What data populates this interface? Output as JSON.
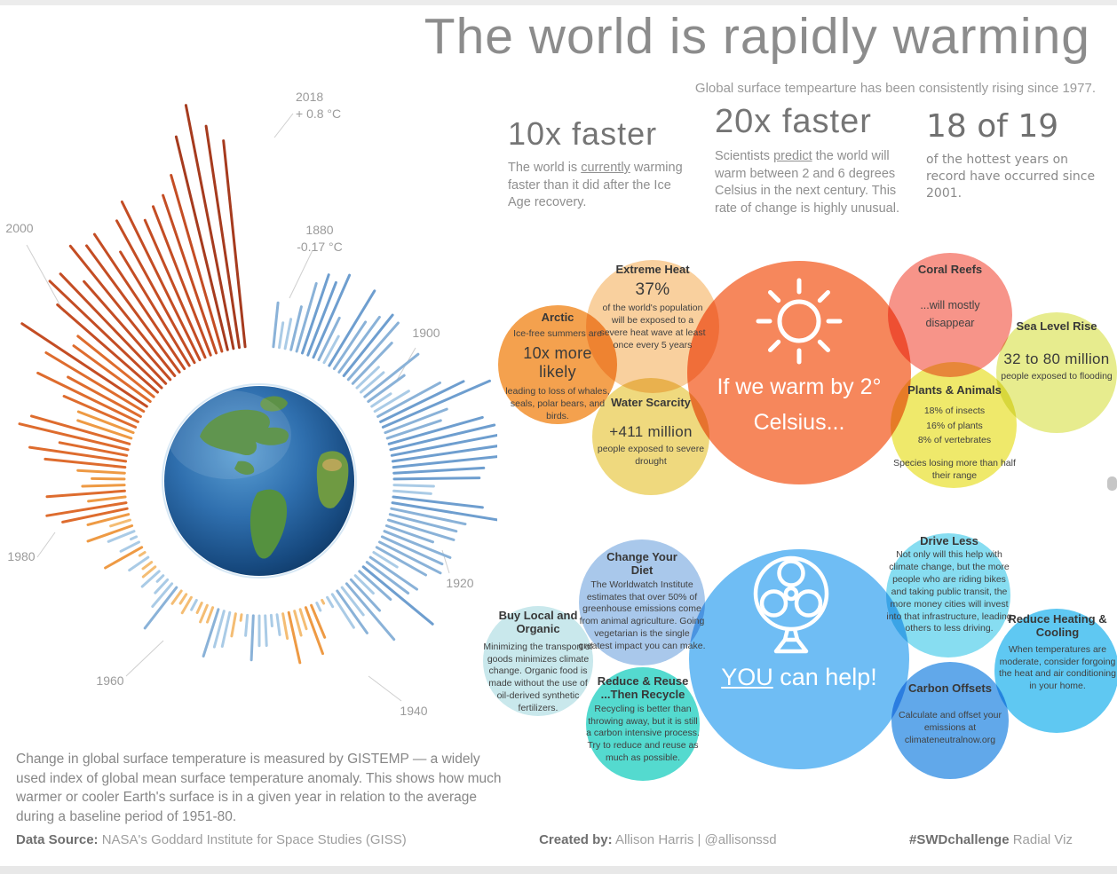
{
  "page": {
    "title": "The world is rapidly warming",
    "subtitle": "Global surface tempearture has been consistently rising since 1977."
  },
  "stats": [
    {
      "headline": "10x faster",
      "body_pre": "The world is ",
      "body_u": "currently",
      "body_post": " warming faster than it did after the Ice Age recovery."
    },
    {
      "headline": "20x faster",
      "body_pre": "Scientists ",
      "body_u": "predict",
      "body_post": " the world will warm between 2 and 6 degrees Celsius in the next century. This rate of change is highly unusual."
    },
    {
      "headline": "18 of 19",
      "body": "of the hottest years on record have occurred since 2001."
    }
  ],
  "warming_cluster": {
    "center": {
      "line1": "If we warm by 2°",
      "line2": "Celsius...",
      "icon": "sun-icon",
      "color": "#f6875c"
    },
    "bubbles": [
      {
        "id": "extreme-heat",
        "title": "Extreme Heat",
        "stat": "37%",
        "body": "of the world's population will be exposed to a severe heat wave at least once every 5 years",
        "color": "#f9d09e"
      },
      {
        "id": "arctic",
        "title": "Arctic",
        "pre": "Ice-free summers are",
        "stat": "10x more likely",
        "body": "leading to loss of whales, seals, polar bears, and birds.",
        "color": "#f4a14e"
      },
      {
        "id": "water-scarcity",
        "title": "Water Scarcity",
        "stat": "+411 million",
        "body": "people exposed to severe drought",
        "color": "#efd97e"
      },
      {
        "id": "coral-reefs",
        "title": "Coral Reefs",
        "body": "...will mostly disappear",
        "color": "#f79489"
      },
      {
        "id": "plants-animals",
        "title": "Plants & Animals",
        "lines": "18% of insects\n16% of plants\n8% of vertebrates",
        "body": "Species losing more than half their range",
        "color": "#efe96b"
      },
      {
        "id": "sea-level-rise",
        "title": "Sea Level Rise",
        "stat": "32 to 80 million",
        "body": "people exposed to flooding",
        "color": "#e7ec8e"
      }
    ]
  },
  "help_cluster": {
    "center": {
      "u": "YOU",
      "rest": " can help!",
      "icon": "fan-icon",
      "color": "#6fbdf4"
    },
    "bubbles": [
      {
        "id": "change-diet",
        "title": "Change Your\nDiet",
        "body": "The Worldwatch Institute estimates that over 50% of greenhouse emissions come from animal agriculture. Going vegetarian is the single greatest impact you can make.",
        "color": "#a9c8eb"
      },
      {
        "id": "buy-local",
        "title": "Buy Local and\nOrganic",
        "body": "Minimizing the transport of goods minimizes climate change. Organic food is made without the use of oil-derived synthetic fertilizers.",
        "color": "#c9e8ec"
      },
      {
        "id": "reduce-reuse",
        "title": "Reduce & Reuse\n...Then Recycle",
        "body": "Recycling is better than throwing away, but it is still a carbon intensive process. Try to reduce and reuse as much as possible.",
        "color": "#54dacf"
      },
      {
        "id": "drive-less",
        "title": "Drive Less",
        "body": "Not only will this help with climate change, but the more people who are riding bikes and taking public transit, the more money cities will invest into that infrastructure, leading others to less driving.",
        "color": "#87ddf1"
      },
      {
        "id": "carbon-offsets",
        "title": "Carbon Offsets",
        "body": "Calculate and offset your emissions at climateneutralnow.org",
        "color": "#61a8ea"
      },
      {
        "id": "reduce-heating",
        "title": "Reduce Heating &\nCooling",
        "body": "When temperatures are moderate, consider forgoing the heat and air conditioning in your home.",
        "color": "#5fc8f2"
      }
    ]
  },
  "chart_data": {
    "type": "radial-bar",
    "title": "Change in global surface temperature (GISTEMP anomaly vs 1951-80 baseline)",
    "unit": "°C",
    "year_start": 1880,
    "year_end": 2018,
    "values": [
      -0.17,
      -0.09,
      -0.11,
      -0.17,
      -0.28,
      -0.33,
      -0.31,
      -0.36,
      -0.18,
      -0.11,
      -0.35,
      -0.22,
      -0.27,
      -0.31,
      -0.3,
      -0.22,
      -0.11,
      -0.11,
      -0.27,
      -0.17,
      -0.08,
      -0.15,
      -0.28,
      -0.37,
      -0.47,
      -0.26,
      -0.22,
      -0.39,
      -0.43,
      -0.48,
      -0.43,
      -0.44,
      -0.36,
      -0.34,
      -0.15,
      -0.14,
      -0.36,
      -0.46,
      -0.3,
      -0.27,
      -0.27,
      -0.19,
      -0.28,
      -0.26,
      -0.27,
      -0.22,
      -0.1,
      -0.22,
      -0.2,
      -0.36,
      -0.16,
      -0.09,
      -0.16,
      -0.29,
      -0.13,
      -0.2,
      -0.15,
      -0.03,
      0.0,
      -0.02,
      0.13,
      0.19,
      0.07,
      0.09,
      0.2,
      0.09,
      -0.07,
      -0.03,
      -0.11,
      -0.11,
      -0.17,
      -0.07,
      0.01,
      0.08,
      -0.13,
      -0.14,
      -0.19,
      0.05,
      0.06,
      0.03,
      -0.03,
      0.06,
      0.03,
      0.05,
      -0.2,
      -0.11,
      -0.06,
      -0.02,
      -0.08,
      0.05,
      0.03,
      -0.08,
      0.01,
      0.16,
      -0.07,
      -0.01,
      -0.1,
      0.18,
      0.07,
      0.16,
      0.26,
      0.32,
      0.14,
      0.31,
      0.16,
      0.12,
      0.18,
      0.32,
      0.39,
      0.27,
      0.45,
      0.41,
      0.22,
      0.23,
      0.31,
      0.45,
      0.33,
      0.46,
      0.61,
      0.38,
      0.39,
      0.54,
      0.63,
      0.62,
      0.53,
      0.68,
      0.64,
      0.66,
      0.54,
      0.66,
      0.72,
      0.61,
      0.65,
      0.68,
      0.75,
      0.9,
      1.02,
      0.92,
      0.85
    ],
    "annotations": [
      {
        "year": "2018",
        "note": "+ 0.8 °C"
      },
      {
        "year": "1880",
        "note": "-0.17 °C"
      },
      {
        "year": "1900"
      },
      {
        "year": "1920"
      },
      {
        "year": "1940"
      },
      {
        "year": "1960"
      },
      {
        "year": "1980"
      },
      {
        "year": "2000"
      }
    ],
    "color_scale": [
      {
        "min": 0.8,
        "color": "#a63b1e"
      },
      {
        "min": 0.5,
        "color": "#c44d24"
      },
      {
        "min": 0.25,
        "color": "#de6c2e"
      },
      {
        "min": 0.1,
        "color": "#ee9a44"
      },
      {
        "min": 0.0,
        "color": "#f4bd74"
      },
      {
        "min": -0.15,
        "color": "#aacbe6"
      },
      {
        "min": -0.3,
        "color": "#8ab2d8"
      },
      {
        "min": -9,
        "color": "#6e9ecf"
      }
    ]
  },
  "caption": "Change in global surface temperature is measured by GISTEMP — a widely used index of global mean surface temperature anomaly. This shows how much warmer or cooler Earth's surface is in a given year in relation to the average during a baseline period of 1951-80.",
  "footer": {
    "data_source_label": "Data Source:",
    "data_source": " NASA's Goddard Institute for Space Studies (GISS)",
    "created_label": "Created by:",
    "created": " Allison Harris | @allisonssd",
    "tag_label": "#SWDchallenge",
    "tag": " Radial Viz"
  }
}
